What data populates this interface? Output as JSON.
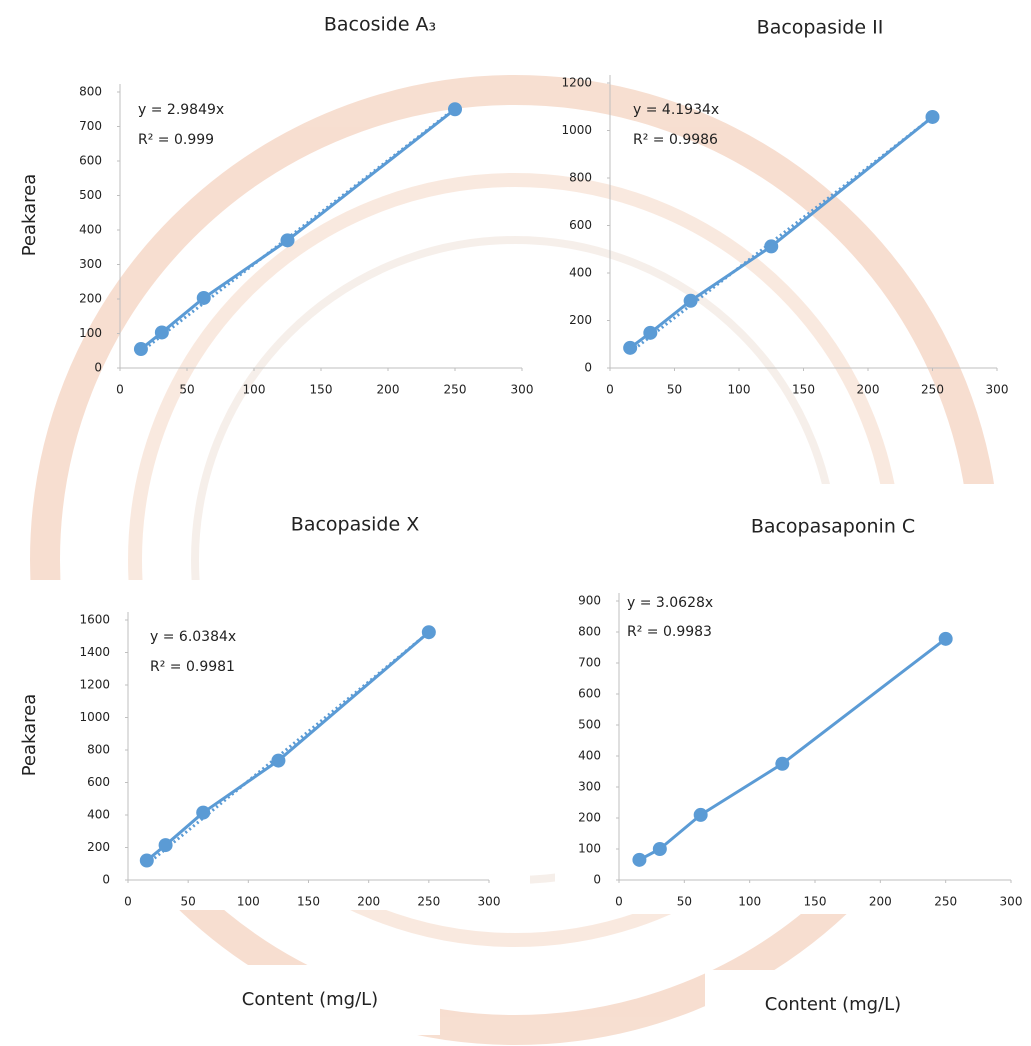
{
  "chart_data": [
    {
      "type": "line",
      "title": "Bacoside A₃",
      "y_label": "Peakarea",
      "x": [
        15.625,
        31.25,
        62.5,
        125,
        250
      ],
      "values": [
        55,
        103,
        203,
        370,
        750
      ],
      "color": "#5b9bd5",
      "xlim": [
        0,
        300
      ],
      "xticks": [
        0,
        50,
        100,
        150,
        200,
        250,
        300
      ],
      "ylim": [
        0,
        800
      ],
      "yticks": [
        0,
        100,
        200,
        300,
        400,
        500,
        600,
        700,
        800
      ],
      "trendline": true,
      "annotations": [
        "y = 2.9849x",
        "R² = 0.999"
      ]
    },
    {
      "type": "line",
      "title": "Bacopaside II",
      "x": [
        15.625,
        31.25,
        62.5,
        125,
        250
      ],
      "values": [
        85,
        148,
        283,
        512,
        1057
      ],
      "color": "#5b9bd5",
      "xlim": [
        0,
        300
      ],
      "xticks": [
        0,
        50,
        100,
        150,
        200,
        250,
        300
      ],
      "ylim": [
        0,
        1200
      ],
      "yticks": [
        0,
        200,
        400,
        600,
        800,
        1000,
        1200
      ],
      "trendline": true,
      "annotations": [
        "y = 4.1934x",
        "R² = 0.9986"
      ]
    },
    {
      "type": "line",
      "title": "Bacopaside X",
      "y_label": "Peakarea",
      "x_label": "Content (mg/L)",
      "x": [
        15.625,
        31.25,
        62.5,
        125,
        250
      ],
      "values": [
        120,
        215,
        415,
        735,
        1525
      ],
      "color": "#5b9bd5",
      "xlim": [
        0,
        300
      ],
      "xticks": [
        0,
        50,
        100,
        150,
        200,
        250,
        300
      ],
      "ylim": [
        0,
        1600
      ],
      "yticks": [
        0,
        200,
        400,
        600,
        800,
        1000,
        1200,
        1400,
        1600
      ],
      "trendline": true,
      "annotations": [
        "y = 6.0384x",
        "R² = 0.9981"
      ]
    },
    {
      "type": "line",
      "title": "Bacopasaponin C",
      "x_label": "Content (mg/L)",
      "x": [
        15.625,
        31.25,
        62.5,
        125,
        250
      ],
      "values": [
        65,
        100,
        210,
        375,
        778
      ],
      "color": "#5b9bd5",
      "xlim": [
        0,
        300
      ],
      "xticks": [
        0,
        50,
        100,
        150,
        200,
        250,
        300
      ],
      "ylim": [
        0,
        900
      ],
      "yticks": [
        0,
        100,
        200,
        300,
        400,
        500,
        600,
        700,
        800,
        900
      ],
      "trendline": false,
      "annotations": [
        "y = 3.0628x",
        "R² = 0.9983"
      ]
    }
  ]
}
